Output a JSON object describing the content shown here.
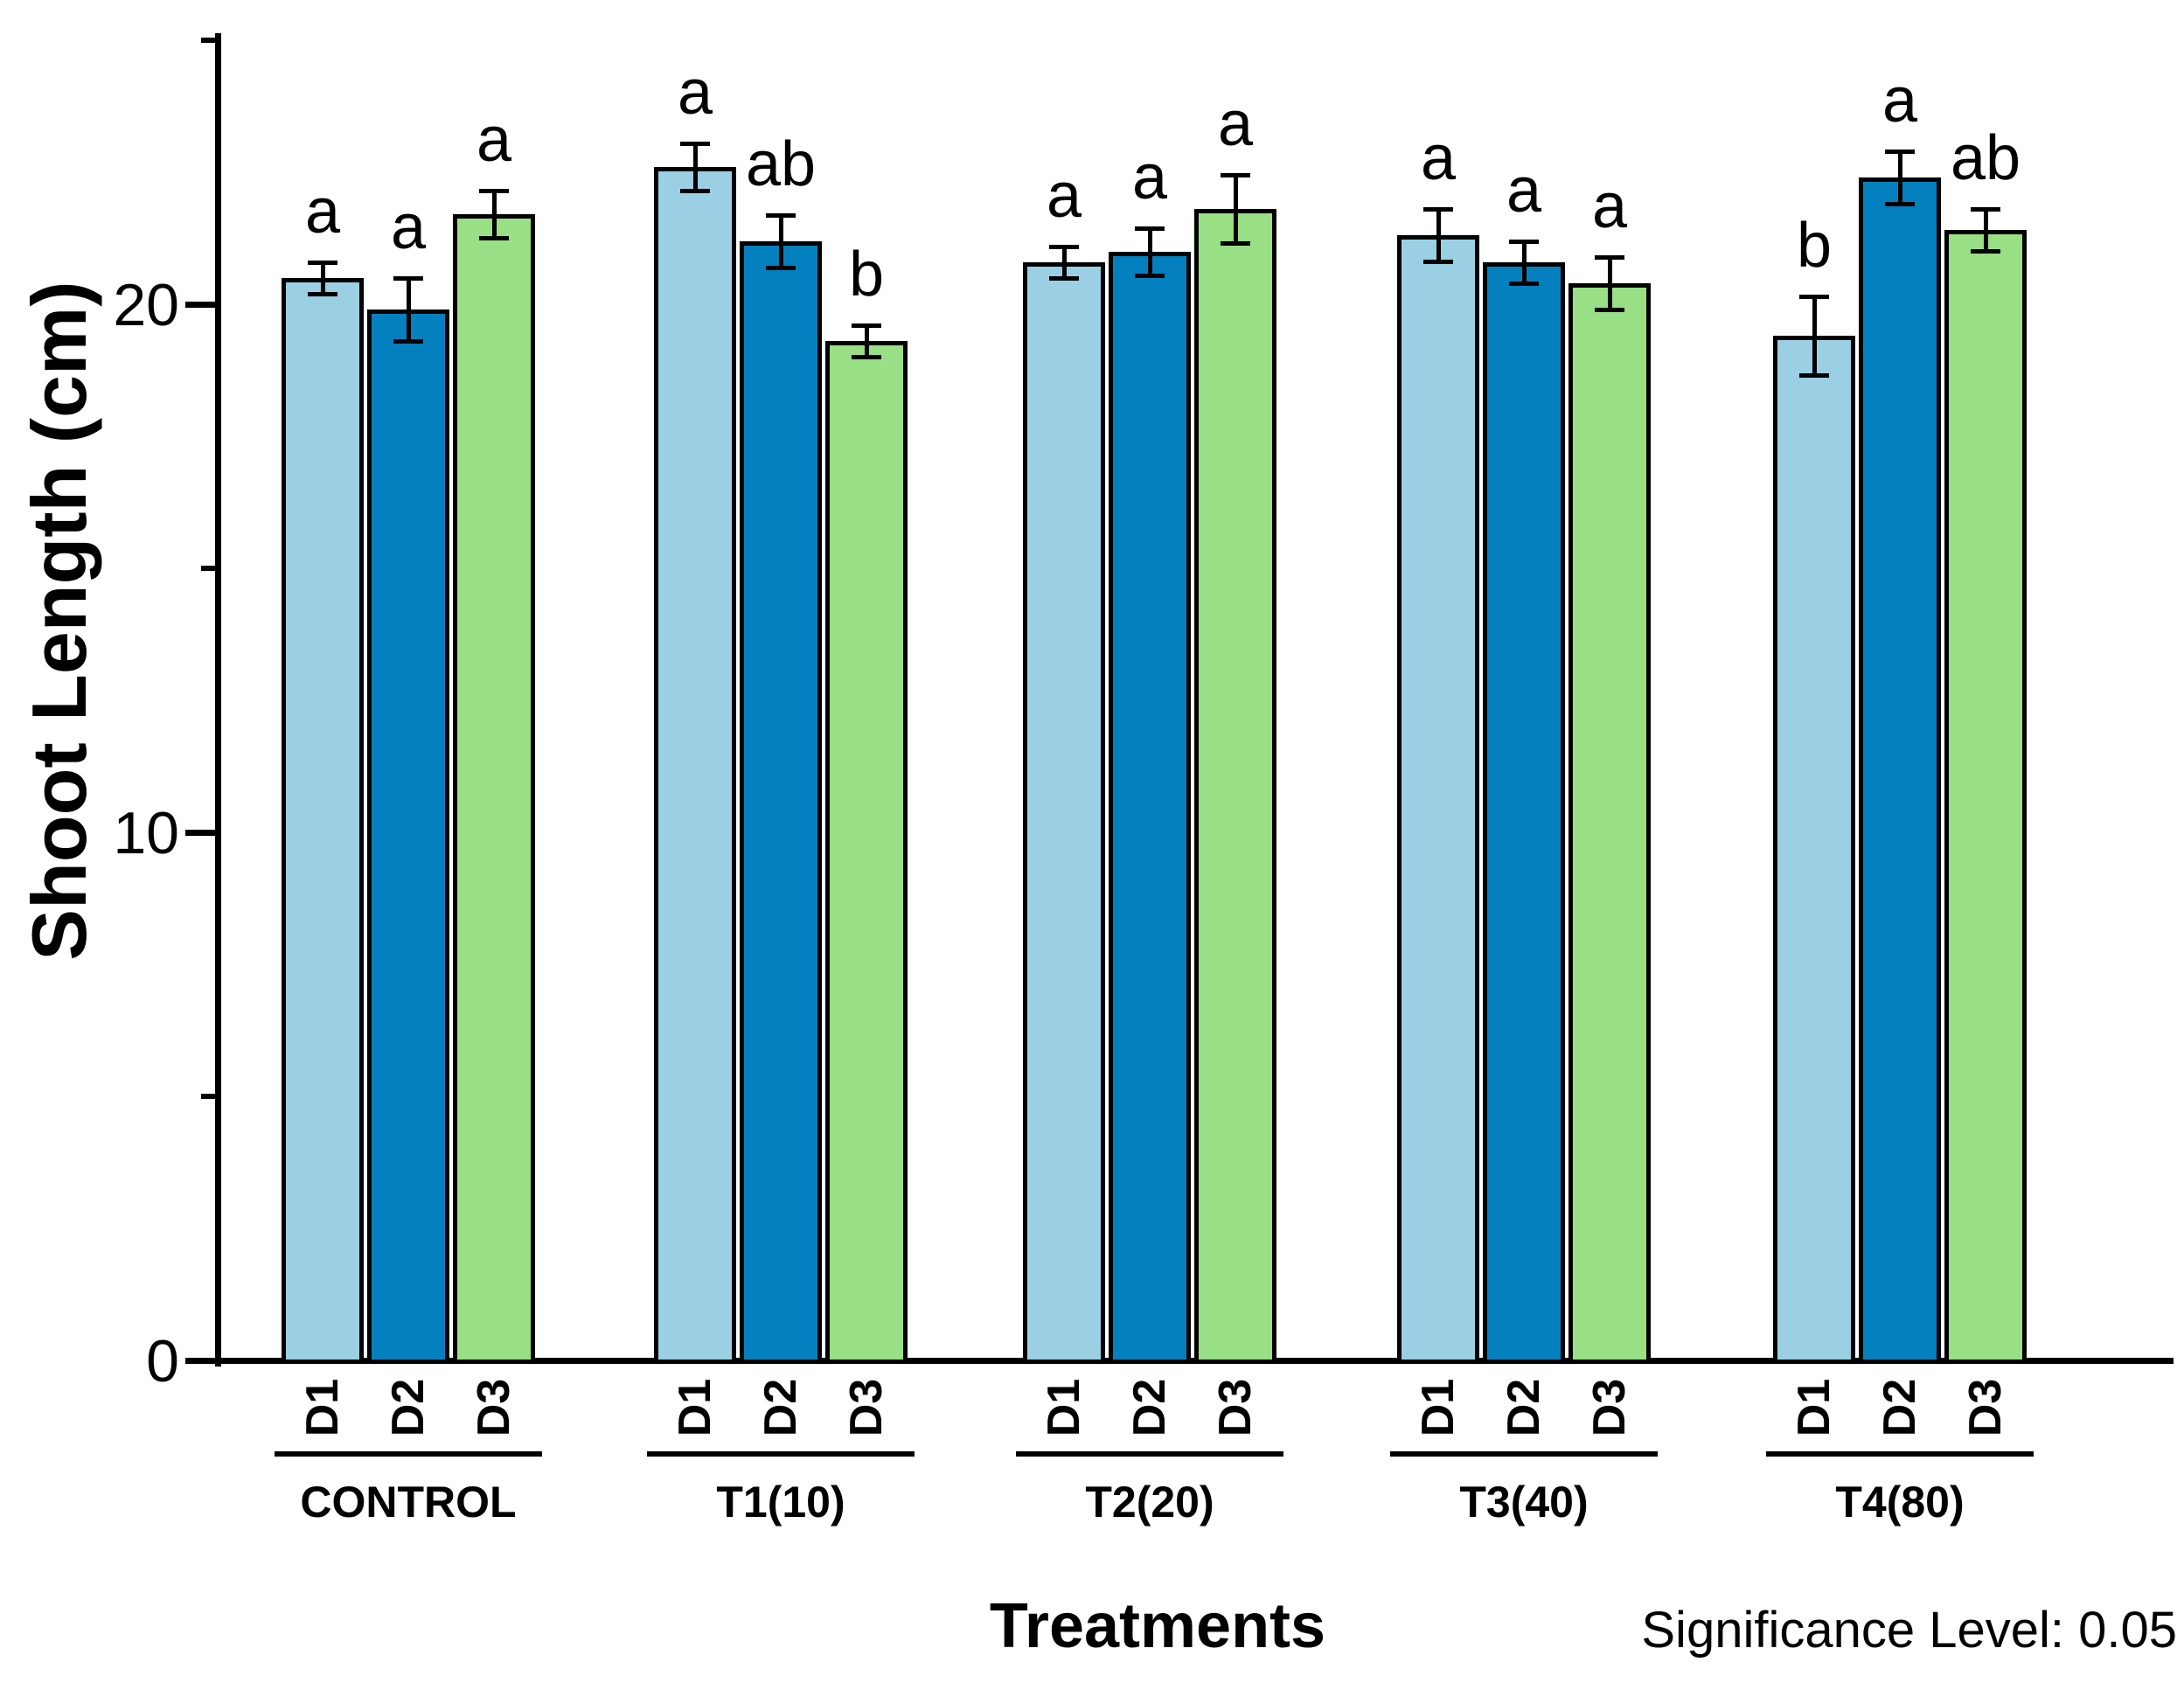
{
  "chart_data": {
    "type": "bar",
    "title": "",
    "xlabel": "Treatments",
    "ylabel": "Shoot Length (cm)",
    "note": "Significance Level: 0.05",
    "ylim": [
      0,
      25
    ],
    "y_major_ticks": [
      0,
      10,
      20
    ],
    "y_minor_ticks": [
      5,
      15,
      25
    ],
    "grid": "off",
    "legend_position": "none",
    "categories": [
      "CONTROL",
      "T1(10)",
      "T2(20)",
      "T3(40)",
      "T4(80)"
    ],
    "series_labels": [
      "D1",
      "D2",
      "D3"
    ],
    "series_colors": {
      "D1": "#9BCFE4",
      "D2": "#0580BE",
      "D3": "#99DF86"
    },
    "bar_outline_color": "#000000",
    "groups": [
      {
        "category": "CONTROL",
        "bars": [
          {
            "label": "D1",
            "value": 20.5,
            "error": 0.3,
            "letter": "a"
          },
          {
            "label": "D2",
            "value": 19.9,
            "error": 0.6,
            "letter": "a"
          },
          {
            "label": "D3",
            "value": 21.7,
            "error": 0.45,
            "letter": "a"
          }
        ]
      },
      {
        "category": "T1(10)",
        "bars": [
          {
            "label": "D1",
            "value": 22.6,
            "error": 0.45,
            "letter": "a"
          },
          {
            "label": "D2",
            "value": 21.2,
            "error": 0.5,
            "letter": "ab"
          },
          {
            "label": "D3",
            "value": 19.3,
            "error": 0.3,
            "letter": "b"
          }
        ]
      },
      {
        "category": "T2(20)",
        "bars": [
          {
            "label": "D1",
            "value": 20.8,
            "error": 0.3,
            "letter": "a"
          },
          {
            "label": "D2",
            "value": 21.0,
            "error": 0.45,
            "letter": "a"
          },
          {
            "label": "D3",
            "value": 21.8,
            "error": 0.65,
            "letter": "a"
          }
        ]
      },
      {
        "category": "T3(40)",
        "bars": [
          {
            "label": "D1",
            "value": 21.3,
            "error": 0.5,
            "letter": "a"
          },
          {
            "label": "D2",
            "value": 20.8,
            "error": 0.4,
            "letter": "a"
          },
          {
            "label": "D3",
            "value": 20.4,
            "error": 0.5,
            "letter": "a"
          }
        ]
      },
      {
        "category": "T4(80)",
        "bars": [
          {
            "label": "D1",
            "value": 19.4,
            "error": 0.75,
            "letter": "b"
          },
          {
            "label": "D2",
            "value": 22.4,
            "error": 0.5,
            "letter": "a"
          },
          {
            "label": "D3",
            "value": 21.4,
            "error": 0.4,
            "letter": "ab"
          }
        ]
      }
    ]
  }
}
